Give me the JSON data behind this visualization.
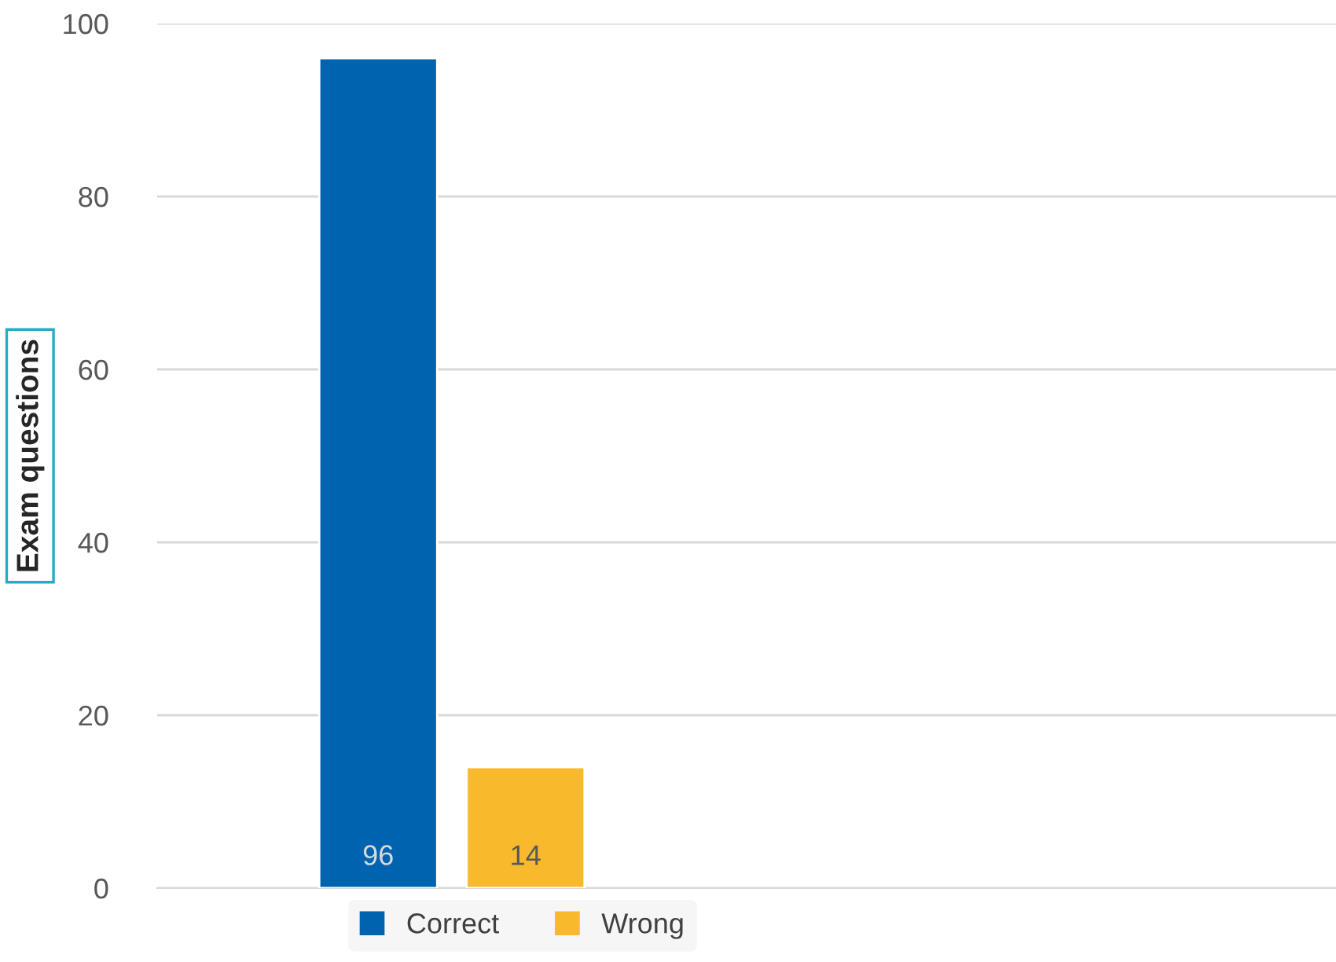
{
  "chart_data": {
    "type": "bar",
    "ylabel": "Exam questions",
    "categories": [
      null,
      null
    ],
    "series": [
      {
        "name": "Correct",
        "color": "#0063b0",
        "values": [
          96,
          null
        ]
      },
      {
        "name": "Wrong",
        "color": "#f9b92d",
        "values": [
          14,
          null
        ]
      }
    ],
    "ylim": [
      0,
      100
    ],
    "yticks": [
      0,
      20,
      40,
      60,
      80,
      100
    ],
    "grid": "y",
    "legend": "bottom",
    "data_labels": true
  }
}
